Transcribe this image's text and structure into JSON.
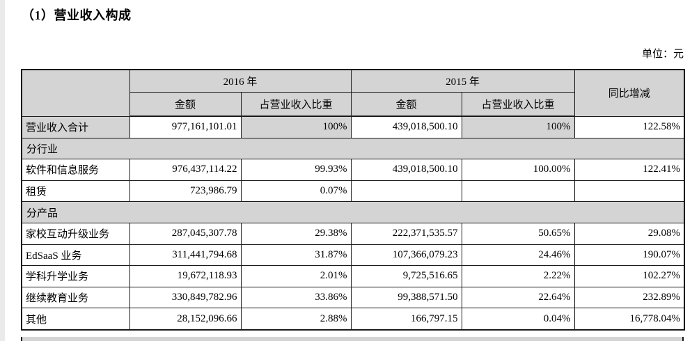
{
  "page": {
    "title": "（1）营业收入构成",
    "unit_note": "单位：元"
  },
  "table": {
    "header": {
      "year_2016": "2016 年",
      "year_2015": "2015 年",
      "amount_2016": "金额",
      "ratio_2016": "占营业收入比重",
      "amount_2015": "金额",
      "ratio_2015": "占营业收入比重",
      "yoy": "同比增减"
    },
    "rows": [
      {
        "label": "营业收入合计",
        "a2016": "977,161,101.01",
        "r2016": "100%",
        "a2015": "439,018,500.10",
        "r2015": "100%",
        "yoy": "122.58%"
      },
      {
        "label": "分行业"
      },
      {
        "label": "软件和信息服务",
        "a2016": "976,437,114.22",
        "r2016": "99.93%",
        "a2015": "439,018,500.10",
        "r2015": "100.00%",
        "yoy": "122.41%"
      },
      {
        "label": "租赁",
        "a2016": "723,986.79",
        "r2016": "0.07%",
        "a2015": "",
        "r2015": "",
        "yoy": ""
      },
      {
        "label": "分产品"
      },
      {
        "label": "家校互动升级业务",
        "a2016": "287,045,307.78",
        "r2016": "29.38%",
        "a2015": "222,371,535.57",
        "r2015": "50.65%",
        "yoy": "29.08%"
      },
      {
        "label": "EdSaaS 业务",
        "a2016": "311,441,794.68",
        "r2016": "31.87%",
        "a2015": "107,366,079.23",
        "r2015": "24.46%",
        "yoy": "190.07%"
      },
      {
        "label": "学科升学业务",
        "a2016": "19,672,118.93",
        "r2016": "2.01%",
        "a2015": "9,725,516.65",
        "r2015": "2.22%",
        "yoy": "102.27%"
      },
      {
        "label": "继续教育业务",
        "a2016": "330,849,782.96",
        "r2016": "33.86%",
        "a2015": "99,388,571.50",
        "r2015": "22.64%",
        "yoy": "232.89%"
      },
      {
        "label": "其他",
        "a2016": "28,152,096.66",
        "r2016": "2.88%",
        "a2015": "166,797.15",
        "r2015": "0.04%",
        "yoy": "16,778.04%"
      }
    ]
  }
}
